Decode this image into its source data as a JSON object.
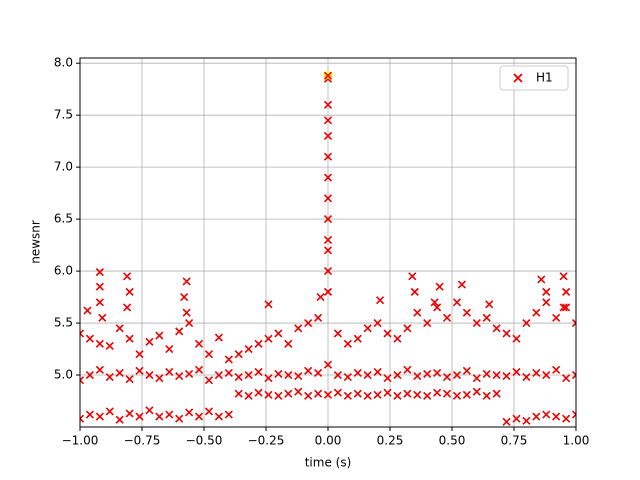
{
  "chart_data": {
    "type": "scatter",
    "x_label": "time (s)",
    "y_label": "newsnr",
    "xlim": [
      -1,
      1
    ],
    "ylim": [
      4.5,
      8.05
    ],
    "xticks": [
      {
        "value": -1,
        "label": "−1.00"
      },
      {
        "value": -0.75,
        "label": "−0.75"
      },
      {
        "value": -0.5,
        "label": "−0.50"
      },
      {
        "value": -0.25,
        "label": "−0.25"
      },
      {
        "value": 0,
        "label": "0.00"
      },
      0.25,
      {
        "value": 0.5,
        "label": "0.50"
      },
      0.75,
      {
        "value": 1,
        "label": "1.00"
      }
    ],
    "yticks": [
      {
        "value": 5,
        "label": "5.0"
      },
      5.5,
      {
        "value": 6,
        "label": "6.0"
      },
      6.5,
      {
        "value": 7,
        "label": "7.0"
      },
      7.5,
      {
        "value": 8,
        "label": "8.0"
      }
    ],
    "grid": true,
    "legend": "upper right",
    "series": [
      {
        "name": "H1",
        "color": "#ee0000",
        "x": [
          -1,
          -0.96,
          -0.92,
          -0.88,
          -0.84,
          -0.8,
          -0.76,
          -0.72,
          -0.68,
          -0.64,
          -0.6,
          -0.56,
          -0.52,
          -0.48,
          -0.44,
          -0.4,
          -0.36,
          -0.32,
          -0.28,
          -0.24,
          -0.2,
          -0.16,
          -0.12,
          -0.08,
          -0.04,
          0,
          0.04,
          0.08,
          0.12,
          0.16,
          0.2,
          0.24,
          0.28,
          0.32,
          0.36,
          0.4,
          0.44,
          0.48,
          0.52,
          0.56,
          0.6,
          0.64,
          0.68,
          0.72,
          0.76,
          0.8,
          0.84,
          0.88,
          0.92,
          0.96,
          1,
          -1,
          -0.96,
          -0.92,
          -0.88,
          -0.84,
          -0.8,
          -0.76,
          -0.72,
          -0.68,
          -0.64,
          -0.6,
          -0.56,
          -0.52,
          -0.48,
          -0.44,
          -0.4,
          -0.36,
          -0.32,
          -0.28,
          -0.24,
          -0.2,
          -0.16,
          -0.12,
          -0.08,
          -0.04,
          0,
          0.04,
          0.08,
          0.12,
          0.16,
          0.2,
          0.24,
          0.28,
          0.32,
          0.36,
          0.4,
          0.44,
          0.48,
          0.52,
          0.56,
          0.6,
          0.64,
          0.68,
          0.72,
          0.76,
          0.8,
          0.84,
          0.88,
          0.92,
          0.96,
          1,
          -1,
          -0.96,
          -0.92,
          -0.88,
          -0.84,
          -0.8,
          -0.76,
          -0.72,
          -0.68,
          -0.64,
          -0.6,
          -0.56,
          -0.52,
          -0.48,
          -0.44,
          -0.4,
          -0.36,
          -0.32,
          -0.28,
          -0.24,
          -0.2,
          -0.16,
          -0.12,
          -0.08,
          -0.04,
          0,
          0.04,
          0.08,
          0.12,
          0.16,
          0.2,
          0.24,
          0.28,
          0.32,
          0.36,
          0.4,
          0.44,
          0.48,
          0.52,
          0.56,
          0.6,
          0.64,
          0.68,
          0.72,
          0.76,
          0.8,
          0.84,
          0.88,
          0.92,
          0.96,
          1,
          -0.92,
          -0.92,
          -0.92,
          -0.91,
          -0.81,
          -0.8,
          -0.81,
          -0.57,
          -0.58,
          -0.57,
          0,
          0,
          0,
          0,
          0,
          0,
          0,
          0,
          0,
          0,
          0,
          0.34,
          0.35,
          0.45,
          0.43,
          0.54,
          0.21,
          -0.24,
          0.86,
          0.88,
          0.95,
          0.96,
          0.95,
          0.65,
          -0.03,
          -0.97
        ],
        "y": [
          4.58,
          4.62,
          4.6,
          4.65,
          4.57,
          4.63,
          4.6,
          4.66,
          4.6,
          4.62,
          4.58,
          4.64,
          4.6,
          4.65,
          4.6,
          4.62,
          4.82,
          4.8,
          4.83,
          4.81,
          4.8,
          4.82,
          4.84,
          4.8,
          4.82,
          4.81,
          4.83,
          4.8,
          4.82,
          4.8,
          4.81,
          4.83,
          4.8,
          4.82,
          4.81,
          4.8,
          4.83,
          4.82,
          4.8,
          4.81,
          4.84,
          4.8,
          4.82,
          4.55,
          4.58,
          4.56,
          4.6,
          4.62,
          4.6,
          4.58,
          4.62,
          4.95,
          5.0,
          5.05,
          4.98,
          5.02,
          4.96,
          5.04,
          5.0,
          4.97,
          5.03,
          4.99,
          5.01,
          5.05,
          4.95,
          5.0,
          5.02,
          4.98,
          5.0,
          5.03,
          4.97,
          5.01,
          5.0,
          4.99,
          5.04,
          5.02,
          5.1,
          5.0,
          4.98,
          5.02,
          5.0,
          5.03,
          4.97,
          5.0,
          5.05,
          4.99,
          5.01,
          5.02,
          4.98,
          5.0,
          5.04,
          4.97,
          5.01,
          5.0,
          4.99,
          5.03,
          4.98,
          5.02,
          5.0,
          5.05,
          4.97,
          5.0,
          5.4,
          5.35,
          5.3,
          5.28,
          5.45,
          5.35,
          5.2,
          5.32,
          5.38,
          5.25,
          5.42,
          5.5,
          5.3,
          5.2,
          5.36,
          5.15,
          5.2,
          5.25,
          5.3,
          5.35,
          5.4,
          5.3,
          5.45,
          5.5,
          5.55,
          6.2,
          5.4,
          5.3,
          5.35,
          5.45,
          5.5,
          5.4,
          5.35,
          5.45,
          5.6,
          5.5,
          5.65,
          5.55,
          5.7,
          5.6,
          5.5,
          5.55,
          5.45,
          5.4,
          5.35,
          5.5,
          5.6,
          5.7,
          5.55,
          5.65,
          5.5,
          5.99,
          5.85,
          5.7,
          5.55,
          5.95,
          5.8,
          5.65,
          5.9,
          5.75,
          5.6,
          5.8,
          6.0,
          6.3,
          6.5,
          6.7,
          6.9,
          7.1,
          7.3,
          7.45,
          7.6,
          7.85,
          5.95,
          5.8,
          5.85,
          5.7,
          5.87,
          5.72,
          5.68,
          5.92,
          5.8,
          5.95,
          5.8,
          5.65,
          5.68,
          5.75,
          5.62
        ]
      }
    ],
    "highlight": {
      "x": 0,
      "y": 7.88,
      "color": "#ffff00"
    }
  }
}
